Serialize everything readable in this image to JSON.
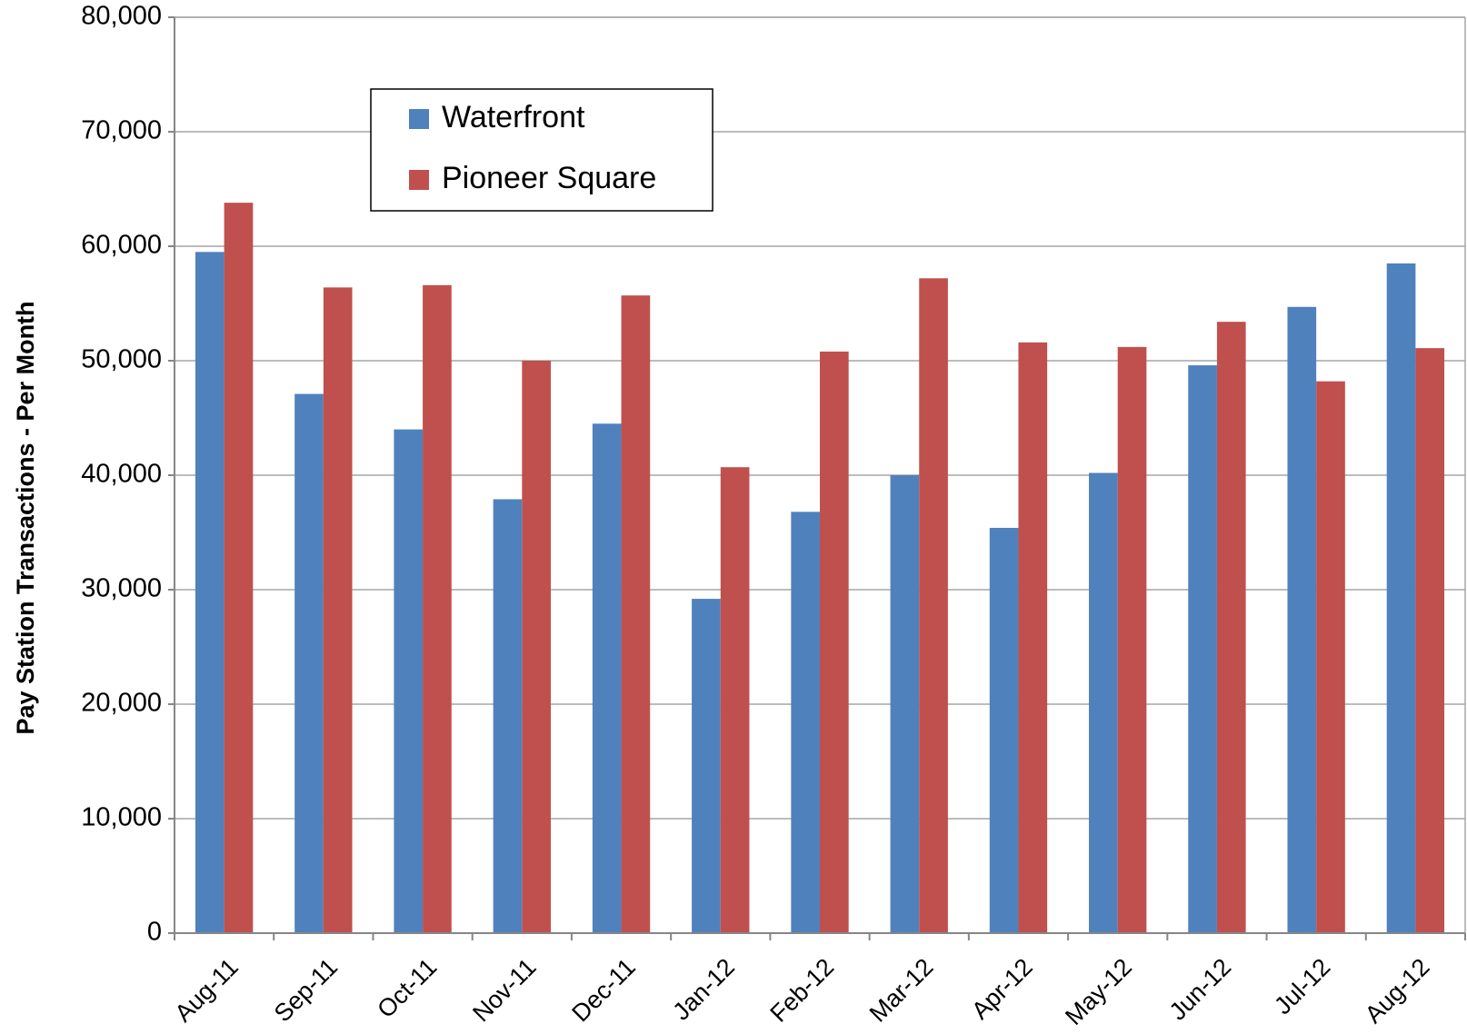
{
  "chart_data": {
    "type": "bar",
    "y_label": "Pay Station Transactions - Per Month",
    "categories": [
      "Aug-11",
      "Sep-11",
      "Oct-11",
      "Nov-11",
      "Dec-11",
      "Jan-12",
      "Feb-12",
      "Mar-12",
      "Apr-12",
      "May-12",
      "Jun-12",
      "Jul-12",
      "Aug-12"
    ],
    "series": [
      {
        "name": "Waterfront",
        "color": "#4f81bd",
        "values": [
          59500,
          47100,
          44000,
          37900,
          44500,
          29200,
          36800,
          40000,
          35400,
          40200,
          49600,
          54700,
          58500
        ]
      },
      {
        "name": "Pioneer Square",
        "color": "#c0504d",
        "values": [
          63800,
          56400,
          56600,
          50000,
          55700,
          40700,
          50800,
          57200,
          51600,
          51200,
          53400,
          48200,
          51100
        ]
      }
    ],
    "ylim": [
      0,
      80000
    ],
    "yticks": [
      0,
      {
        "value": 10000,
        "label": "10,000"
      },
      {
        "value": 20000,
        "label": "20,000"
      },
      {
        "value": 30000,
        "label": "30,000"
      },
      {
        "value": 40000,
        "label": "40,000"
      },
      {
        "value": 50000,
        "label": "50,000"
      },
      {
        "value": 60000,
        "label": "60,000"
      },
      {
        "value": 70000,
        "label": "70,000"
      },
      {
        "value": 80000,
        "label": "80,000"
      }
    ],
    "grid": true,
    "legend": "upper-left"
  }
}
